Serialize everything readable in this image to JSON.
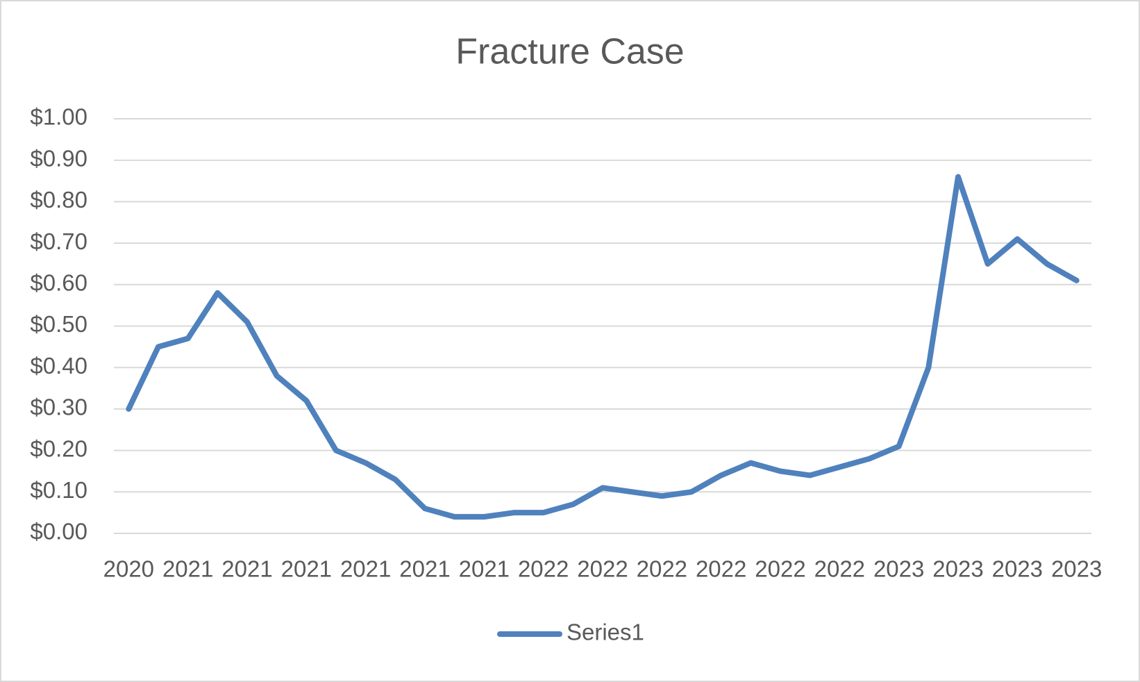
{
  "chart_data": {
    "type": "line",
    "title": "Fracture Case",
    "categories": [
      "2020",
      null,
      "2021",
      null,
      "2021",
      null,
      "2021",
      null,
      "2021",
      null,
      "2021",
      null,
      "2021",
      null,
      "2022",
      null,
      "2022",
      null,
      "2022",
      null,
      "2022",
      null,
      "2022",
      null,
      "2022",
      null,
      "2023",
      null,
      "2023",
      null,
      "2023",
      null,
      "2023"
    ],
    "series": [
      {
        "name": "Series1",
        "color": "#4f81bd",
        "values": [
          0.3,
          0.45,
          0.47,
          0.58,
          0.51,
          0.38,
          0.32,
          0.2,
          0.17,
          0.13,
          0.06,
          0.04,
          0.04,
          0.05,
          0.05,
          0.07,
          0.11,
          0.1,
          0.09,
          0.1,
          0.14,
          0.17,
          0.15,
          0.14,
          0.16,
          0.18,
          0.21,
          0.4,
          0.86,
          0.65,
          0.71,
          0.65,
          0.61
        ]
      }
    ],
    "ylim": [
      0,
      1
    ],
    "yticks": [
      {
        "value": 0,
        "label": "$0.00"
      },
      {
        "value": 0.1,
        "label": "$0.10"
      },
      {
        "value": 0.2,
        "label": "$0.20"
      },
      {
        "value": 0.3,
        "label": "$0.30"
      },
      {
        "value": 0.4,
        "label": "$0.40"
      },
      {
        "value": 0.5,
        "label": "$0.50"
      },
      {
        "value": 0.6,
        "label": "$0.60"
      },
      {
        "value": 0.7,
        "label": "$0.70"
      },
      {
        "value": 0.8,
        "label": "$0.80"
      },
      {
        "value": 0.9,
        "label": "$0.90"
      },
      {
        "value": 1,
        "label": "$1.00"
      }
    ],
    "grid": true,
    "legend": "bottom"
  }
}
